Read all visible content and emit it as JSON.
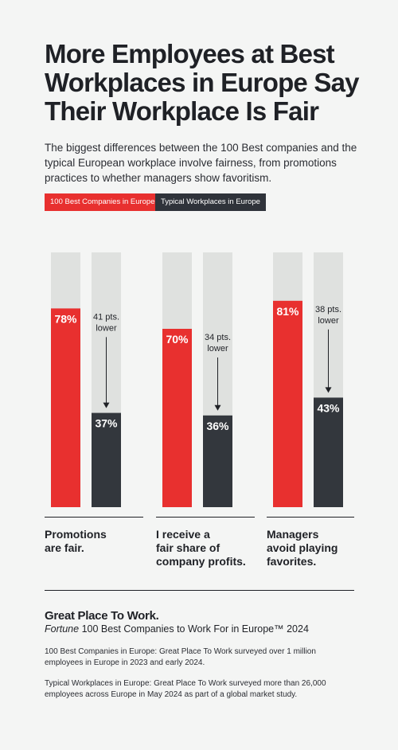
{
  "title": "More Employees at Best Workplaces in Europe Say Their Workplace Is Fair",
  "subtitle": "The biggest differences between the 100 Best companies and the typical European workplace involve fairness, from promotions practices to whether managers show favoritism.",
  "legend": {
    "best": "100 Best Companies in Europe",
    "typical": "Typical Workplaces in Europe"
  },
  "colors": {
    "best": "#e8302f",
    "typical": "#33373d",
    "track": "#dfe1df",
    "background": "#f4f5f4"
  },
  "chart_data": {
    "type": "bar",
    "ylim": [
      0,
      100
    ],
    "categories": [
      "Promotions are fair.",
      "I receive a fair share of company profits.",
      "Managers avoid playing favorites."
    ],
    "series": [
      {
        "name": "100 Best Companies in Europe",
        "values": [
          78,
          70,
          81
        ],
        "labels": [
          "78%",
          "70%",
          "81%"
        ]
      },
      {
        "name": "Typical Workplaces in Europe",
        "values": [
          37,
          36,
          43
        ],
        "labels": [
          "37%",
          "36%",
          "43%"
        ]
      }
    ],
    "annotations": [
      [
        "41 pts.",
        "lower"
      ],
      [
        "34 pts.",
        "lower"
      ],
      [
        "38 pts.",
        "lower"
      ]
    ]
  },
  "categories_display": [
    [
      "Promotions",
      "are fair."
    ],
    [
      "I receive a",
      "fair share of",
      "company profits."
    ],
    [
      "Managers",
      "avoid playing",
      "favorites."
    ]
  ],
  "footer": {
    "brand": "Great Place To Work.",
    "list_title_italic": "Fortune",
    "list_title_rest": " 100 Best Companies to Work For in Europe™ 2024",
    "note1": "100 Best Companies in Europe: Great Place To Work surveyed over 1 million employees in Europe in 2023 and early 2024.",
    "note2": "Typical Workplaces in Europe: Great Place To Work surveyed more than 26,000 employees across Europe in May 2024 as part of a global market study."
  }
}
